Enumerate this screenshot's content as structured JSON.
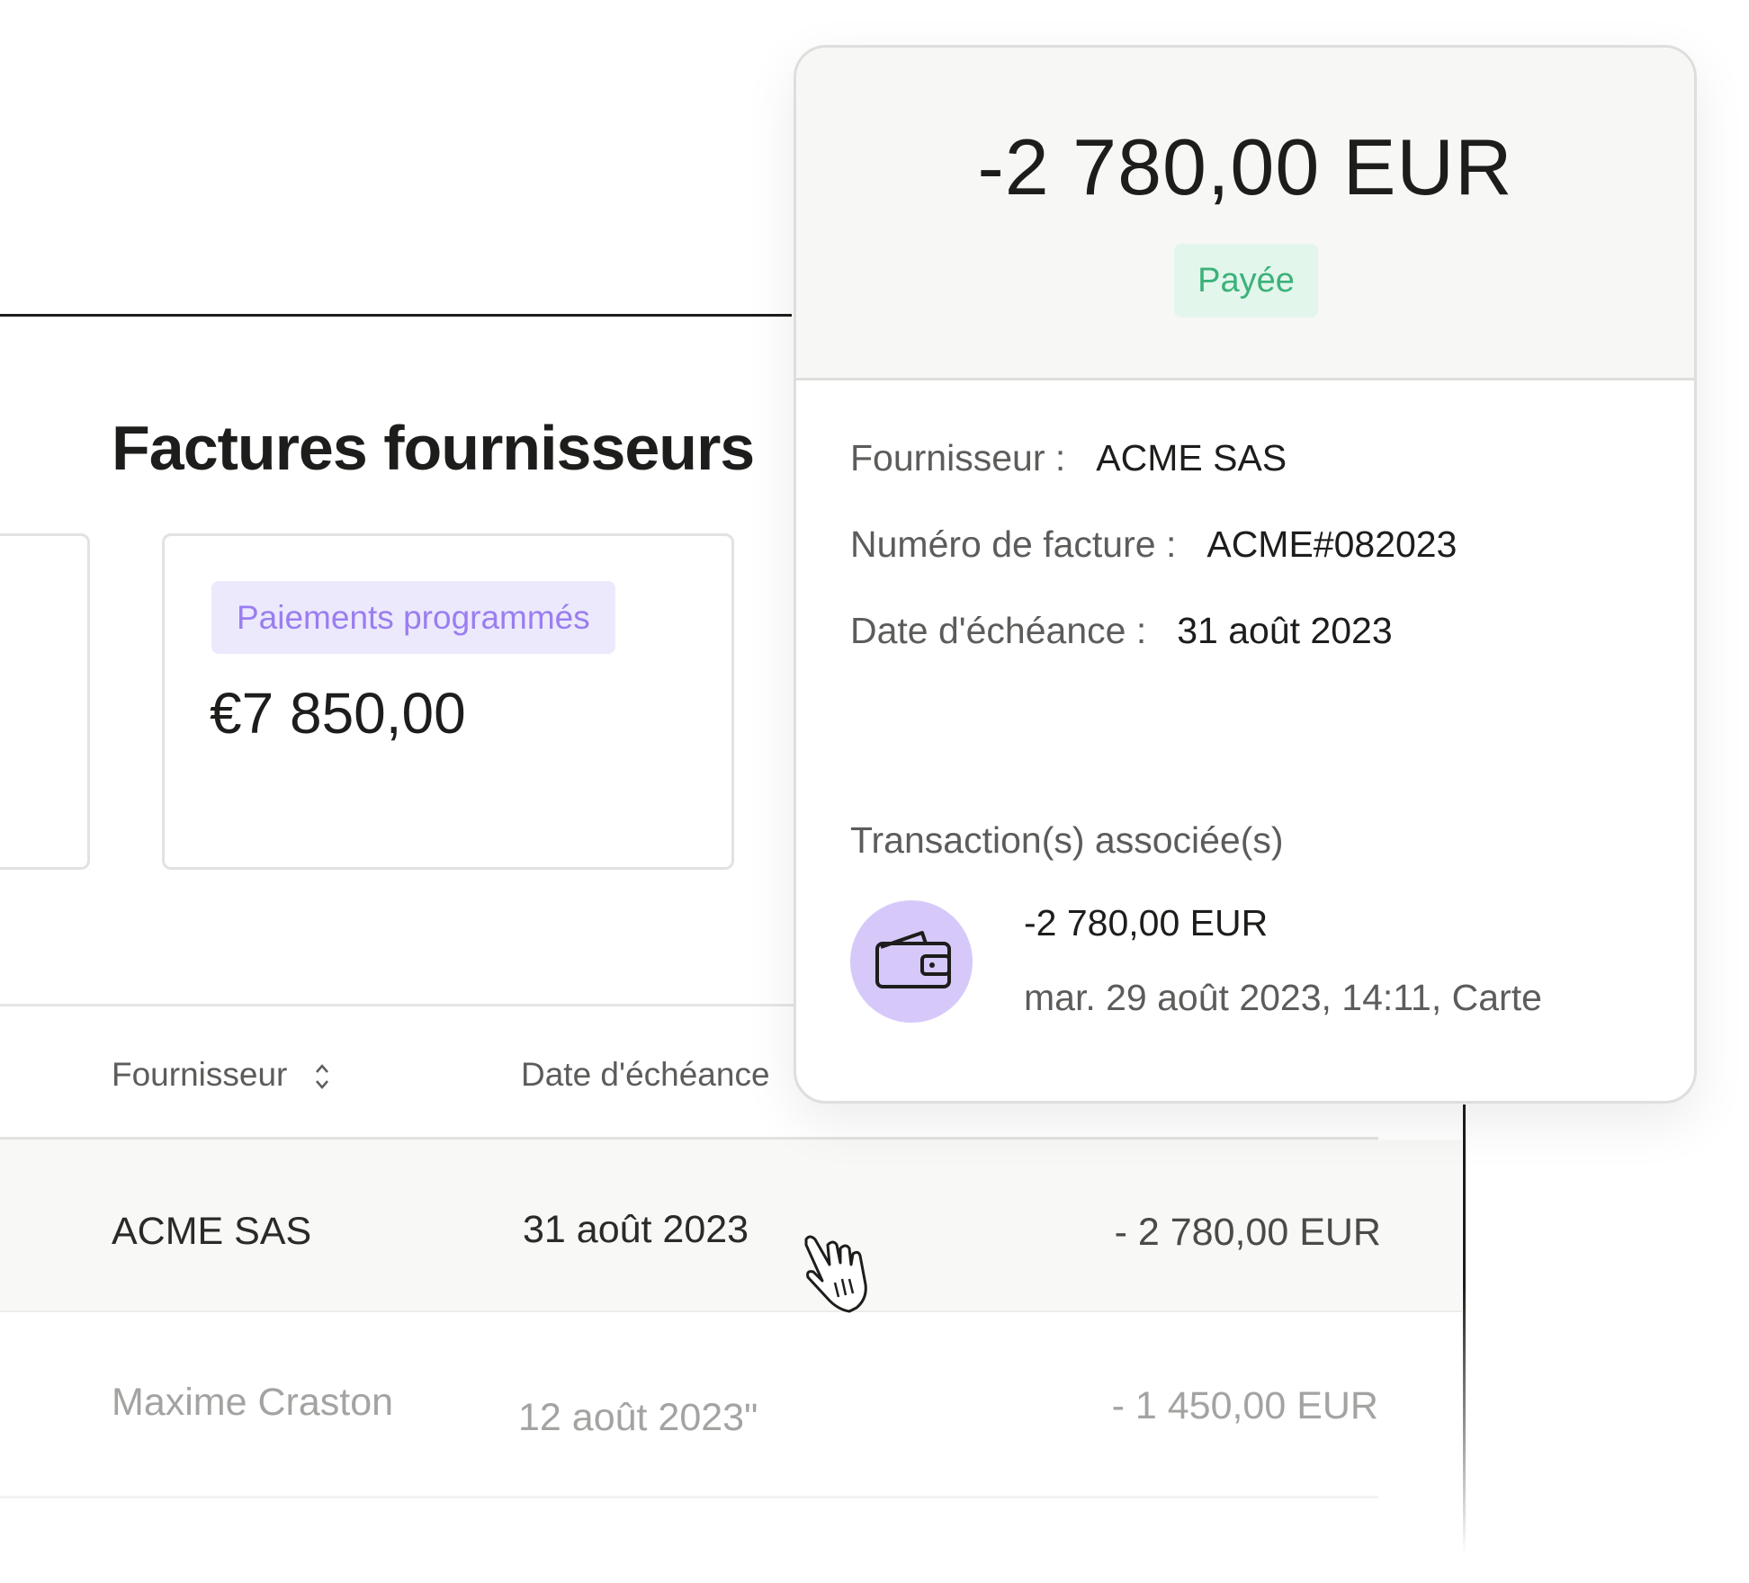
{
  "page": {
    "title": "Factures fournisseurs",
    "summary_card": {
      "badge": "Paiements programmés",
      "amount": "€7 850,00"
    }
  },
  "table": {
    "headers": [
      {
        "label": "Fournisseur",
        "sortable": true,
        "icon": "sort-icon"
      },
      {
        "label": "Date d'échéance"
      }
    ],
    "rows": [
      {
        "supplier": "ACME SAS",
        "due_date": "31 août 2023",
        "amount": "- 2 780,00 EUR",
        "hovered": true
      },
      {
        "supplier": "Maxime Craston",
        "due_date": "12 août 2023\"",
        "amount": "- 1 450,00 EUR"
      }
    ]
  },
  "popup": {
    "amount": "-2 780,00 EUR",
    "status": "Payée",
    "status_color": "#3bb27a",
    "details": [
      {
        "label": "Fournisseur :",
        "value": "ACME SAS"
      },
      {
        "label": "Numéro de facture :",
        "value": "ACME#082023"
      },
      {
        "label": "Date d'échéance :",
        "value": "31 août 2023"
      }
    ],
    "transactions_heading": "Transaction(s) associée(s)",
    "transaction": {
      "icon": "wallet-icon",
      "amount": "-2 780,00 EUR",
      "meta": "mar. 29 août 2023, 14:11, Carte"
    }
  },
  "colors": {
    "accent_purple": "#9a7ef0",
    "purple_bg": "#d6c9fa",
    "paid_bg": "#e3f6ec"
  }
}
